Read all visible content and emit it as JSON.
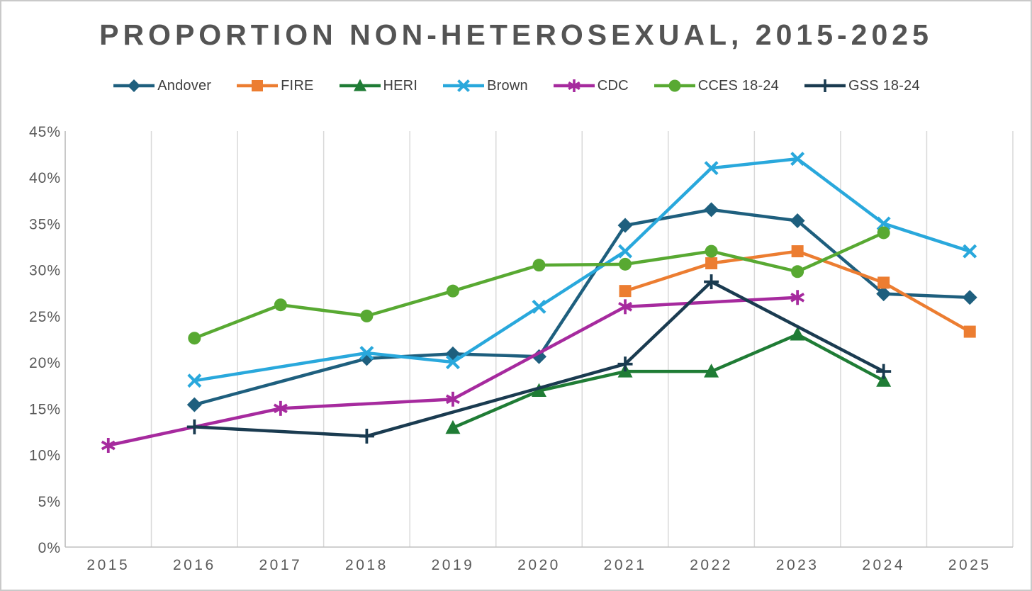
{
  "chart_data": {
    "type": "line",
    "title": "PROPORTION NON-HETEROSEXUAL, 2015-2025",
    "categories": [
      "2015",
      "2016",
      "2017",
      "2018",
      "2019",
      "2020",
      "2021",
      "2022",
      "2023",
      "2024",
      "2025"
    ],
    "y_ticks": [
      "0%",
      "5%",
      "10%",
      "15%",
      "20%",
      "25%",
      "30%",
      "35%",
      "40%",
      "45%"
    ],
    "ylim": [
      0,
      45
    ],
    "ytick_step": 5,
    "grid": "vertical-only",
    "legend_position": "top",
    "axis_color": "#c0c0c0",
    "gridline_color": "#d9d9d9",
    "series": [
      {
        "name": "Andover",
        "color": "#1E5F7E",
        "marker": "diamond",
        "values": [
          null,
          15.4,
          null,
          20.4,
          20.9,
          20.6,
          34.8,
          36.5,
          35.3,
          27.4,
          27.0
        ]
      },
      {
        "name": "FIRE",
        "color": "#EC7D31",
        "marker": "square",
        "values": [
          null,
          null,
          null,
          null,
          null,
          null,
          27.7,
          30.7,
          32.0,
          28.6,
          23.3
        ]
      },
      {
        "name": "HERI",
        "color": "#1F7C35",
        "marker": "triangle",
        "values": [
          null,
          null,
          null,
          null,
          12.9,
          16.9,
          19.0,
          19.0,
          23.0,
          18.0,
          null
        ]
      },
      {
        "name": "Brown",
        "color": "#29A8DC",
        "marker": "x",
        "values": [
          null,
          18.0,
          null,
          21.0,
          20.0,
          26.0,
          32.0,
          41.0,
          42.0,
          35.0,
          32.0
        ]
      },
      {
        "name": "CDC",
        "color": "#A62A9E",
        "marker": "asterisk",
        "values": [
          11.0,
          null,
          15.0,
          null,
          16.0,
          null,
          26.0,
          null,
          27.0,
          null,
          null
        ]
      },
      {
        "name": "CCES 18-24",
        "color": "#58A932",
        "marker": "circle",
        "values": [
          null,
          22.6,
          26.2,
          25.0,
          27.7,
          30.5,
          30.6,
          32.0,
          29.8,
          34.0,
          null
        ]
      },
      {
        "name": "GSS 18-24",
        "color": "#1A3B50",
        "marker": "plus",
        "values": [
          null,
          13.0,
          null,
          12.0,
          null,
          null,
          19.8,
          28.7,
          null,
          19.0,
          null
        ]
      }
    ]
  }
}
